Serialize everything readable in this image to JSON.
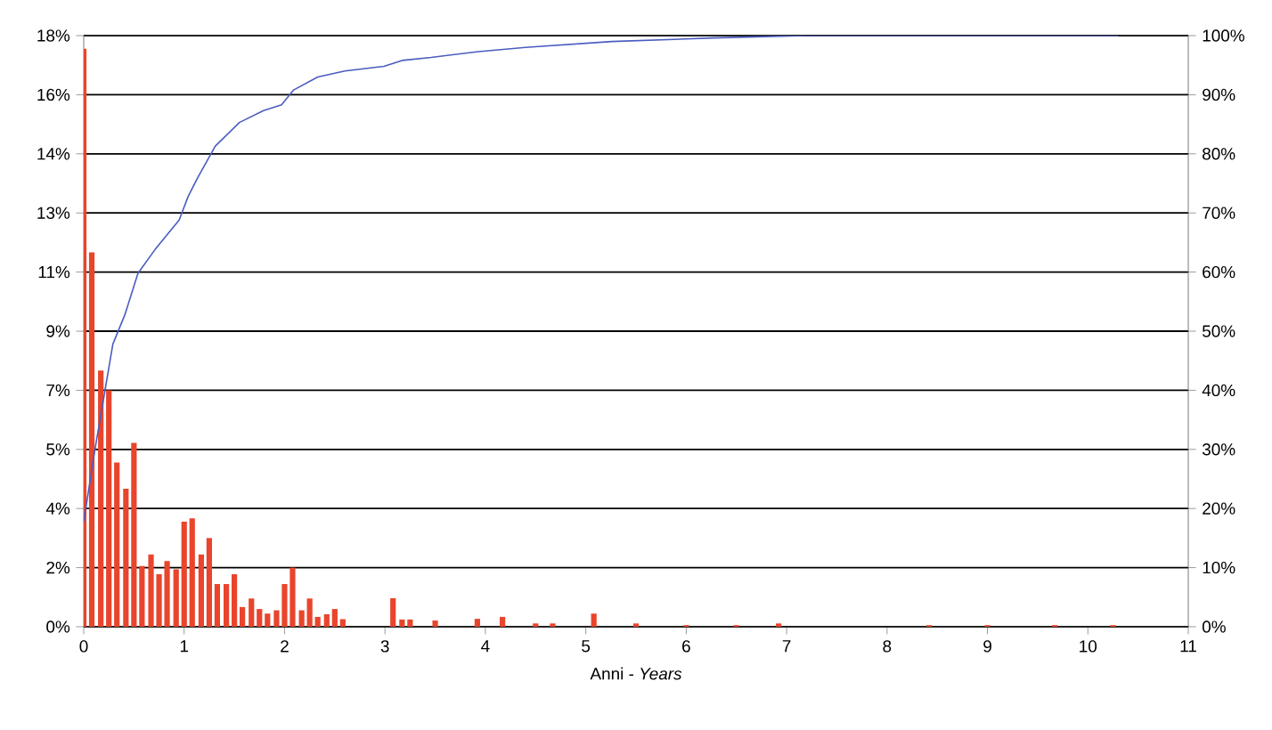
{
  "chart_data": {
    "type": "bar",
    "xlabel": "Anni - *Years*",
    "xlim": [
      0,
      11
    ],
    "xticks": [
      0,
      1,
      2,
      3,
      4,
      5,
      6,
      7,
      8,
      9,
      10,
      11
    ],
    "ylim": [
      0,
      18
    ],
    "yticks": [
      {
        "value": 0,
        "label": "0%"
      },
      {
        "value": 1.8,
        "label": "2%"
      },
      {
        "value": 3.6,
        "label": "4%"
      },
      {
        "value": 5.4,
        "label": "5%"
      },
      {
        "value": 7.2,
        "label": "7%"
      },
      {
        "value": 9,
        "label": "9%"
      },
      {
        "value": 10.8,
        "label": "11%"
      },
      {
        "value": 12.6,
        "label": "13%"
      },
      {
        "value": 14.4,
        "label": "14%"
      },
      {
        "value": 16.2,
        "label": "16%"
      },
      {
        "value": 18,
        "label": "18%"
      }
    ],
    "y2lim": [
      0,
      100
    ],
    "y2ticks": [
      {
        "value": 0,
        "label": "0%"
      },
      {
        "value": 10,
        "label": "10%"
      },
      {
        "value": 20,
        "label": "20%"
      },
      {
        "value": 30,
        "label": "30%"
      },
      {
        "value": 40,
        "label": "40%"
      },
      {
        "value": 50,
        "label": "50%"
      },
      {
        "value": 60,
        "label": "60%"
      },
      {
        "value": 70,
        "label": "70%"
      },
      {
        "value": 80,
        "label": "80%"
      },
      {
        "value": 90,
        "label": "90%"
      },
      {
        "value": 100,
        "label": "100%"
      }
    ],
    "grid": "y",
    "series": [
      {
        "color": "#e8452c",
        "x": [
          0.0,
          0.08,
          0.17,
          0.25,
          0.33,
          0.42,
          0.5,
          0.58,
          0.67,
          0.75,
          0.83,
          0.92,
          1.0,
          1.08,
          1.17,
          1.25,
          1.33,
          1.42,
          1.5,
          1.58,
          1.67,
          1.75,
          1.83,
          1.92,
          2.0,
          2.08,
          2.17,
          2.25,
          2.33,
          2.42,
          2.5,
          2.58,
          3.08,
          3.17,
          3.25,
          3.5,
          3.92,
          4.17,
          4.5,
          4.67,
          5.08,
          5.5,
          6.0,
          6.5,
          6.92,
          8.42,
          9.0,
          9.67,
          10.25
        ],
        "values": [
          17.6,
          11.4,
          7.8,
          7.2,
          5.0,
          4.2,
          5.6,
          1.85,
          2.2,
          1.6,
          2.0,
          1.75,
          3.2,
          3.3,
          2.2,
          2.7,
          1.3,
          1.3,
          1.6,
          0.6,
          0.86,
          0.54,
          0.4,
          0.5,
          1.3,
          1.8,
          0.5,
          0.86,
          0.3,
          0.38,
          0.54,
          0.23,
          0.87,
          0.22,
          0.22,
          0.19,
          0.24,
          0.3,
          0.1,
          0.1,
          0.4,
          0.1,
          0.05,
          0.05,
          0.1,
          0.05,
          0.05,
          0.05,
          0.05
        ]
      },
      {
        "type": "line",
        "axis": "y2",
        "color": "#4a5cc0",
        "x": [
          0,
          0.11,
          0.19,
          0.29,
          0.41,
          0.54,
          0.71,
          0.95,
          1.04,
          1.13,
          1.31,
          1.55,
          1.79,
          1.97,
          2.09,
          2.33,
          2.6,
          2.99,
          3.17,
          3.46,
          3.93,
          4.4,
          5.26,
          6.27,
          7.2,
          10.3
        ],
        "values": [
          17.8,
          29.8,
          37.8,
          47.8,
          52.8,
          59.8,
          63.8,
          68.8,
          72.8,
          75.8,
          81.3,
          85.3,
          87.3,
          88.3,
          90.8,
          93,
          94,
          94.8,
          95.8,
          96.3,
          97.3,
          98,
          99,
          99.6,
          100,
          100
        ]
      }
    ]
  }
}
